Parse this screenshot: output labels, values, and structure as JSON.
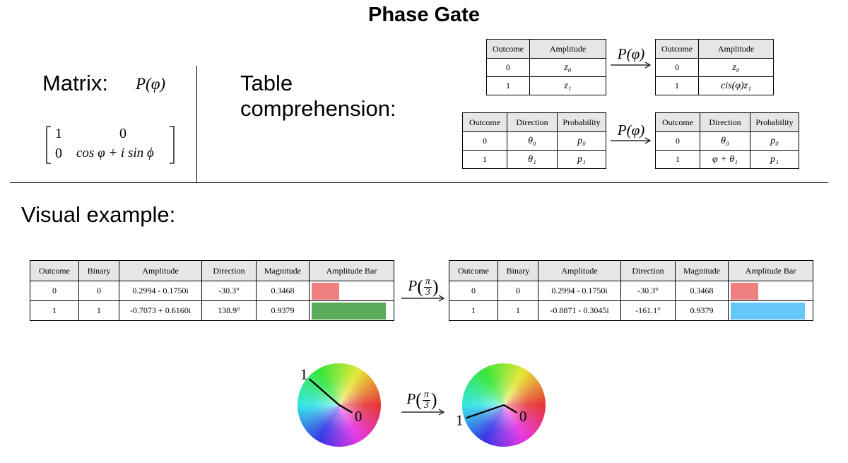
{
  "title": "Phase Gate",
  "matrix_section": {
    "label": "Matrix:",
    "gate": "P(φ)",
    "m11": "1",
    "m12": "0",
    "m21": "0",
    "m22": "cos φ + i sin ϕ"
  },
  "table_section": {
    "label_line1": "Table",
    "label_line2": "comprehension:"
  },
  "gate_arrow_label": "P(φ)",
  "gate_visual_prefix": "P",
  "gate_visual_num": "π",
  "gate_visual_den": "3",
  "amp_before": {
    "headers": [
      "Outcome",
      "Amplitude"
    ],
    "rows": [
      [
        "0",
        "z₀"
      ],
      [
        "1",
        "z₁"
      ]
    ]
  },
  "amp_after": {
    "headers": [
      "Outcome",
      "Amplitude"
    ],
    "rows": [
      [
        "0",
        "z₀"
      ],
      [
        "1",
        "cis(φ)z₁"
      ]
    ]
  },
  "dir_before": {
    "headers": [
      "Outcome",
      "Direction",
      "Probability"
    ],
    "rows": [
      [
        "0",
        "θ₀",
        "p₀"
      ],
      [
        "1",
        "θ₁",
        "p₁"
      ]
    ]
  },
  "dir_after": {
    "headers": [
      "Outcome",
      "Direction",
      "Probability"
    ],
    "rows": [
      [
        "0",
        "θ₀",
        "p₀"
      ],
      [
        "1",
        "φ + θ₁",
        "p₁"
      ]
    ]
  },
  "visual_label": "Visual example:",
  "visual_before": {
    "headers": [
      "Outcome",
      "Binary",
      "Amplitude",
      "Direction",
      "Magnitude",
      "Amplitude Bar"
    ],
    "rows": [
      {
        "outcome": "0",
        "binary": "0",
        "amplitude": "0.2994 - 0.1750i",
        "direction": "-30.3°",
        "magnitude": "0.3468",
        "bar_fraction": 0.3468,
        "bar_color": "#f08080"
      },
      {
        "outcome": "1",
        "binary": "1",
        "amplitude": "-0.7073 + 0.6160i",
        "direction": "138.9°",
        "magnitude": "0.9379",
        "bar_fraction": 0.9379,
        "bar_color": "#5aab5a"
      }
    ]
  },
  "visual_after": {
    "headers": [
      "Outcome",
      "Binary",
      "Amplitude",
      "Direction",
      "Magnitude",
      "Amplitude Bar"
    ],
    "rows": [
      {
        "outcome": "0",
        "binary": "0",
        "amplitude": "0.2994 - 0.1750i",
        "direction": "-30.3°",
        "magnitude": "0.3468",
        "bar_fraction": 0.3468,
        "bar_color": "#f08080"
      },
      {
        "outcome": "1",
        "binary": "1",
        "amplitude": "-0.8871 - 0.3045i",
        "direction": "-161.1°",
        "magnitude": "0.9379",
        "bar_fraction": 0.9379,
        "bar_color": "#66c8fa"
      }
    ]
  },
  "wheel_before": {
    "vectors": [
      {
        "label": "0",
        "angle_deg": -30.3,
        "magnitude": 0.3468
      },
      {
        "label": "1",
        "angle_deg": 138.9,
        "magnitude": 0.9379
      }
    ]
  },
  "wheel_after": {
    "vectors": [
      {
        "label": "0",
        "angle_deg": -30.3,
        "magnitude": 0.3468
      },
      {
        "label": "1",
        "angle_deg": -161.1,
        "magnitude": 0.9379
      }
    ]
  }
}
